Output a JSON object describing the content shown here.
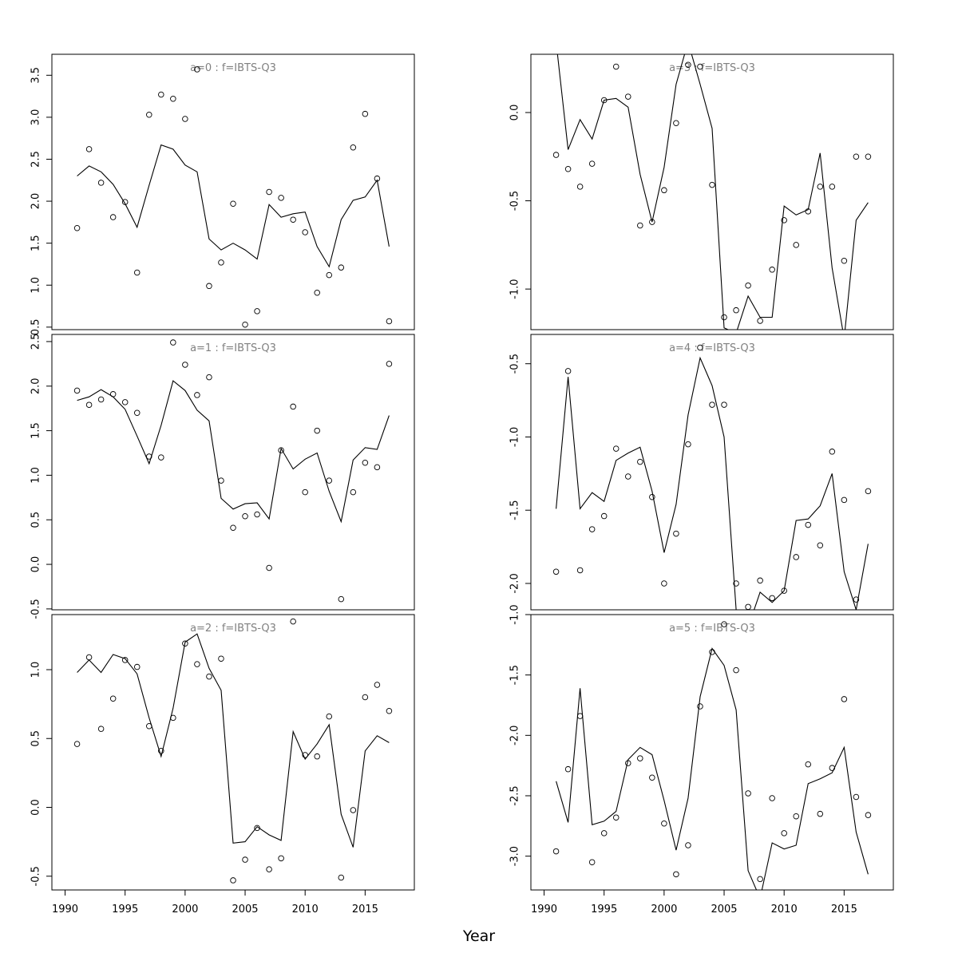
{
  "figure": {
    "xlabel": "Year"
  },
  "colors": {
    "line": "#000000",
    "points": "#000000",
    "panel_title": "#808080",
    "axes": "#000000"
  },
  "chart_data": [
    {
      "type": "line",
      "title": "a=0  :  f=IBTS-Q3",
      "xlim": [
        1988.9,
        2019.1
      ],
      "ylim": [
        0.47,
        3.75
      ],
      "yticks": [
        0.5,
        1.0,
        1.5,
        2.0,
        2.5,
        3.0,
        3.5
      ],
      "ytick_labels": [
        "0.5",
        "1.0",
        "1.5",
        "2.0",
        "2.5",
        "3.0",
        "3.5"
      ],
      "xticks": [],
      "xtick_labels": [],
      "x": [
        1991,
        1992,
        1993,
        1994,
        1995,
        1996,
        1997,
        1998,
        1999,
        2000,
        2001,
        2002,
        2003,
        2004,
        2005,
        2006,
        2007,
        2008,
        2009,
        2010,
        2011,
        2012,
        2013,
        2014,
        2015,
        2016,
        2017
      ],
      "series": [
        {
          "kind": "fitted",
          "style": "line",
          "values": [
            2.3,
            2.42,
            2.35,
            2.2,
            1.97,
            1.69,
            2.19,
            2.67,
            2.62,
            2.43,
            2.35,
            1.55,
            1.42,
            1.5,
            1.42,
            1.31,
            1.96,
            1.81,
            1.85,
            1.87,
            1.46,
            1.22,
            1.78,
            2.01,
            2.05,
            2.25,
            1.46
          ]
        },
        {
          "kind": "observed",
          "style": "points",
          "values": [
            1.68,
            2.62,
            2.22,
            1.81,
            1.99,
            1.15,
            3.03,
            3.27,
            3.22,
            2.98,
            3.57,
            0.99,
            1.27,
            1.97,
            0.53,
            0.69,
            2.11,
            2.04,
            1.78,
            1.63,
            0.91,
            1.12,
            1.21,
            2.64,
            3.04,
            2.27,
            0.57
          ]
        }
      ]
    },
    {
      "type": "line",
      "title": "a=3  :  f=IBTS-Q3",
      "xlim": [
        1988.9,
        2019.1
      ],
      "ylim": [
        -1.23,
        0.33
      ],
      "yticks": [
        -1.0,
        -0.5,
        0.0
      ],
      "ytick_labels": [
        "-1.0",
        "-0.5",
        "0.0"
      ],
      "xticks": [],
      "xtick_labels": [],
      "x": [
        1991,
        1992,
        1993,
        1994,
        1995,
        1996,
        1997,
        1998,
        1999,
        2000,
        2001,
        2002,
        2003,
        2004,
        2005,
        2006,
        2007,
        2008,
        2009,
        2010,
        2011,
        2012,
        2013,
        2014,
        2015,
        2016,
        2017
      ],
      "series": [
        {
          "kind": "fitted",
          "style": "line",
          "values": [
            0.4,
            -0.21,
            -0.04,
            -0.15,
            0.07,
            0.08,
            0.03,
            -0.35,
            -0.62,
            -0.31,
            0.16,
            0.4,
            0.16,
            -0.09,
            -1.22,
            -1.25,
            -1.04,
            -1.16,
            -1.16,
            -0.53,
            -0.58,
            -0.55,
            -0.23,
            -0.88,
            -1.28,
            -0.61,
            -0.51
          ]
        },
        {
          "kind": "observed",
          "style": "points",
          "values": [
            -0.24,
            -0.32,
            -0.42,
            -0.29,
            0.07,
            0.26,
            0.09,
            -0.64,
            -0.62,
            -0.44,
            -0.06,
            0.27,
            0.26,
            -0.41,
            -1.16,
            -1.12,
            -0.98,
            -1.18,
            -0.89,
            -0.61,
            -0.75,
            -0.56,
            -0.42,
            -0.42,
            -0.84,
            -0.25,
            -0.25
          ]
        }
      ]
    },
    {
      "type": "line",
      "title": "a=1  :  f=IBTS-Q3",
      "xlim": [
        1988.9,
        2019.1
      ],
      "ylim": [
        -0.51,
        2.58
      ],
      "yticks": [
        -0.5,
        0.0,
        0.5,
        1.0,
        1.5,
        2.0,
        2.5
      ],
      "ytick_labels": [
        "-0.5",
        "0.0",
        "0.5",
        "1.0",
        "1.5",
        "2.0",
        "2.5"
      ],
      "xticks": [],
      "xtick_labels": [],
      "x": [
        1991,
        1992,
        1993,
        1994,
        1995,
        1996,
        1997,
        1998,
        1999,
        2000,
        2001,
        2002,
        2003,
        2004,
        2005,
        2006,
        2007,
        2008,
        2009,
        2010,
        2011,
        2012,
        2013,
        2014,
        2015,
        2016,
        2017
      ],
      "series": [
        {
          "kind": "fitted",
          "style": "line",
          "values": [
            1.84,
            1.88,
            1.96,
            1.88,
            1.74,
            1.44,
            1.13,
            1.56,
            2.06,
            1.95,
            1.73,
            1.61,
            0.74,
            0.62,
            0.68,
            0.69,
            0.51,
            1.3,
            1.07,
            1.18,
            1.25,
            0.82,
            0.48,
            1.17,
            1.31,
            1.29,
            1.67
          ]
        },
        {
          "kind": "observed",
          "style": "points",
          "values": [
            1.95,
            1.79,
            1.85,
            1.91,
            1.82,
            1.7,
            1.21,
            1.2,
            2.49,
            2.24,
            1.9,
            2.1,
            0.94,
            0.41,
            0.54,
            0.56,
            -0.04,
            1.28,
            1.77,
            0.81,
            1.5,
            0.94,
            -0.39,
            0.81,
            1.14,
            1.09,
            2.25
          ]
        }
      ]
    },
    {
      "type": "line",
      "title": "a=4  :  f=IBTS-Q3",
      "xlim": [
        1988.9,
        2019.1
      ],
      "ylim": [
        -2.18,
        -0.3
      ],
      "yticks": [
        -2.0,
        -1.5,
        -1.0,
        -0.5
      ],
      "ytick_labels": [
        "-2.0",
        "-1.5",
        "-1.0",
        "-0.5"
      ],
      "xticks": [],
      "xtick_labels": [],
      "x": [
        1991,
        1992,
        1993,
        1994,
        1995,
        1996,
        1997,
        1998,
        1999,
        2000,
        2001,
        2002,
        2003,
        2004,
        2005,
        2006,
        2007,
        2008,
        2009,
        2010,
        2011,
        2012,
        2013,
        2014,
        2015,
        2016,
        2017
      ],
      "series": [
        {
          "kind": "fitted",
          "style": "line",
          "values": [
            -1.49,
            -0.59,
            -1.49,
            -1.38,
            -1.44,
            -1.16,
            -1.11,
            -1.07,
            -1.37,
            -1.79,
            -1.46,
            -0.85,
            -0.46,
            -0.65,
            -1.0,
            -2.18,
            -2.3,
            -2.06,
            -2.13,
            -2.05,
            -1.57,
            -1.56,
            -1.47,
            -1.25,
            -1.92,
            -2.18,
            -1.73
          ]
        },
        {
          "kind": "observed",
          "style": "points",
          "values": [
            -1.92,
            -0.55,
            -1.91,
            -1.63,
            -1.54,
            -1.08,
            -1.27,
            -1.17,
            -1.41,
            -2.0,
            -1.66,
            -1.05,
            -0.39,
            -0.78,
            -0.78,
            -2.0,
            -2.16,
            -1.98,
            -2.1,
            -2.05,
            -1.82,
            -1.6,
            -1.74,
            -1.1,
            -1.43,
            -2.11,
            -1.37
          ]
        }
      ]
    },
    {
      "type": "line",
      "title": "a=2  :  f=IBTS-Q3",
      "xlim": [
        1988.9,
        2019.1
      ],
      "ylim": [
        -0.6,
        1.4
      ],
      "yticks": [
        -0.5,
        0.0,
        0.5,
        1.0
      ],
      "ytick_labels": [
        "-0.5",
        "0.0",
        "0.5",
        "1.0"
      ],
      "xticks": [
        1990,
        1995,
        2000,
        2005,
        2010,
        2015
      ],
      "xtick_labels": [
        "1990",
        "1995",
        "2000",
        "2005",
        "2010",
        "2015"
      ],
      "x": [
        1991,
        1992,
        1993,
        1994,
        1995,
        1996,
        1997,
        1998,
        1999,
        2000,
        2001,
        2002,
        2003,
        2004,
        2005,
        2006,
        2007,
        2008,
        2009,
        2010,
        2011,
        2012,
        2013,
        2014,
        2015,
        2016,
        2017
      ],
      "series": [
        {
          "kind": "fitted",
          "style": "line",
          "values": [
            0.98,
            1.07,
            0.98,
            1.11,
            1.08,
            0.97,
            0.65,
            0.37,
            0.72,
            1.2,
            1.26,
            1.01,
            0.85,
            -0.26,
            -0.25,
            -0.14,
            -0.2,
            -0.24,
            0.55,
            0.35,
            0.46,
            0.6,
            -0.05,
            -0.29,
            0.41,
            0.52,
            0.47
          ]
        },
        {
          "kind": "observed",
          "style": "points",
          "values": [
            0.46,
            1.09,
            0.57,
            0.79,
            1.07,
            1.02,
            0.59,
            0.41,
            0.65,
            1.19,
            1.04,
            0.95,
            1.08,
            -0.53,
            -0.38,
            -0.15,
            -0.45,
            -0.37,
            1.35,
            0.38,
            0.37,
            0.66,
            -0.51,
            -0.02,
            0.8,
            0.89,
            0.7
          ]
        }
      ]
    },
    {
      "type": "line",
      "title": "a=5  :  f=IBTS-Q3",
      "xlim": [
        1988.9,
        2019.1
      ],
      "ylim": [
        -3.28,
        -1.0
      ],
      "yticks": [
        -3.0,
        -2.5,
        -2.0,
        -1.5,
        -1.0
      ],
      "ytick_labels": [
        "-3.0",
        "-2.5",
        "-2.0",
        "-1.5",
        "-1.0"
      ],
      "xticks": [
        1990,
        1995,
        2000,
        2005,
        2010,
        2015
      ],
      "xtick_labels": [
        "1990",
        "1995",
        "2000",
        "2005",
        "2010",
        "2015"
      ],
      "x": [
        1991,
        1992,
        1993,
        1994,
        1995,
        1996,
        1997,
        1998,
        1999,
        2000,
        2001,
        2002,
        2003,
        2004,
        2005,
        2006,
        2007,
        2008,
        2009,
        2010,
        2011,
        2012,
        2013,
        2014,
        2015,
        2016,
        2017
      ],
      "series": [
        {
          "kind": "fitted",
          "style": "line",
          "values": [
            -2.38,
            -2.72,
            -1.61,
            -2.74,
            -2.71,
            -2.63,
            -2.2,
            -2.1,
            -2.16,
            -2.54,
            -2.95,
            -2.52,
            -1.68,
            -1.28,
            -1.42,
            -1.79,
            -3.12,
            -3.35,
            -2.89,
            -2.94,
            -2.91,
            -2.4,
            -2.36,
            -2.31,
            -2.1,
            -2.8,
            -3.15
          ]
        },
        {
          "kind": "observed",
          "style": "points",
          "values": [
            -2.96,
            -2.28,
            -1.84,
            -3.05,
            -2.81,
            -2.68,
            -2.23,
            -2.19,
            -2.35,
            -2.73,
            -3.15,
            -2.91,
            -1.76,
            -1.31,
            -1.08,
            -1.46,
            -2.48,
            -3.19,
            -2.52,
            -2.81,
            -2.67,
            -2.24,
            -2.65,
            -2.27,
            -1.7,
            -2.51,
            -2.66
          ]
        }
      ]
    }
  ]
}
